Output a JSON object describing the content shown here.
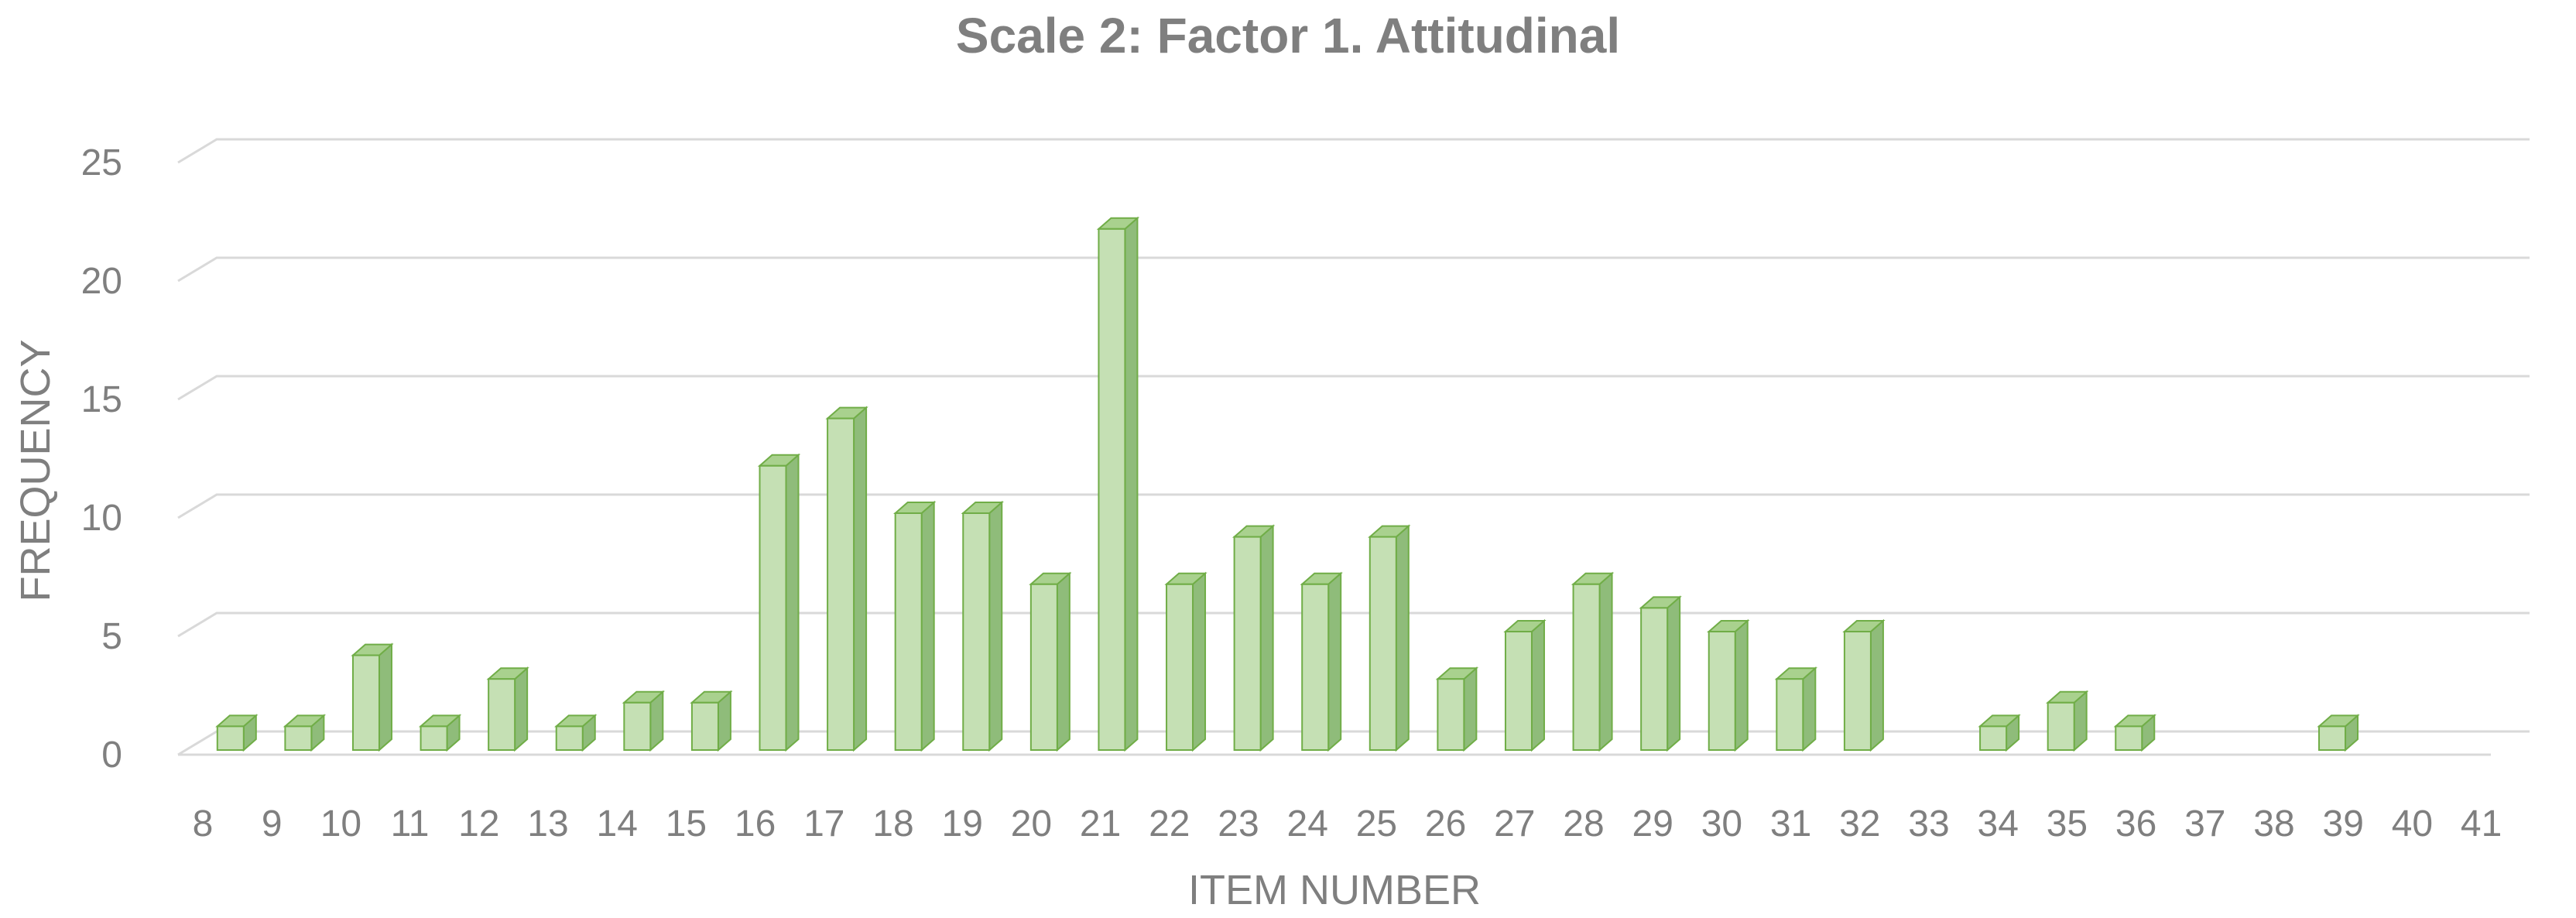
{
  "chart_data": {
    "type": "bar",
    "title": "Scale 2: Factor 1. Attitudinal",
    "xlabel": "ITEM NUMBER",
    "ylabel": "FREQUENCY",
    "ylim": [
      0,
      25
    ],
    "yticks": [
      "0",
      "5",
      "10",
      "15",
      "20",
      "25"
    ],
    "grid": true,
    "style": "3d-column",
    "colors": {
      "bar_front": "#c5e0b4",
      "bar_side": "#8fbc7a",
      "bar_top": "#a9d18e",
      "bar_edge": "#70ad47",
      "text": "#7f7f7f",
      "grid": "#d9d9d9"
    },
    "categories": [
      "8",
      "9",
      "10",
      "11",
      "12",
      "13",
      "14",
      "15",
      "16",
      "17",
      "18",
      "19",
      "20",
      "21",
      "22",
      "23",
      "24",
      "25",
      "26",
      "27",
      "28",
      "29",
      "30",
      "31",
      "32",
      "33",
      "34",
      "35",
      "36",
      "37",
      "38",
      "39",
      "40",
      "41"
    ],
    "values": [
      1,
      1,
      4,
      1,
      3,
      1,
      2,
      2,
      12,
      14,
      10,
      10,
      7,
      22,
      7,
      9,
      7,
      9,
      3,
      5,
      7,
      6,
      5,
      3,
      5,
      0,
      1,
      2,
      1,
      0,
      0,
      1,
      0,
      0
    ]
  }
}
